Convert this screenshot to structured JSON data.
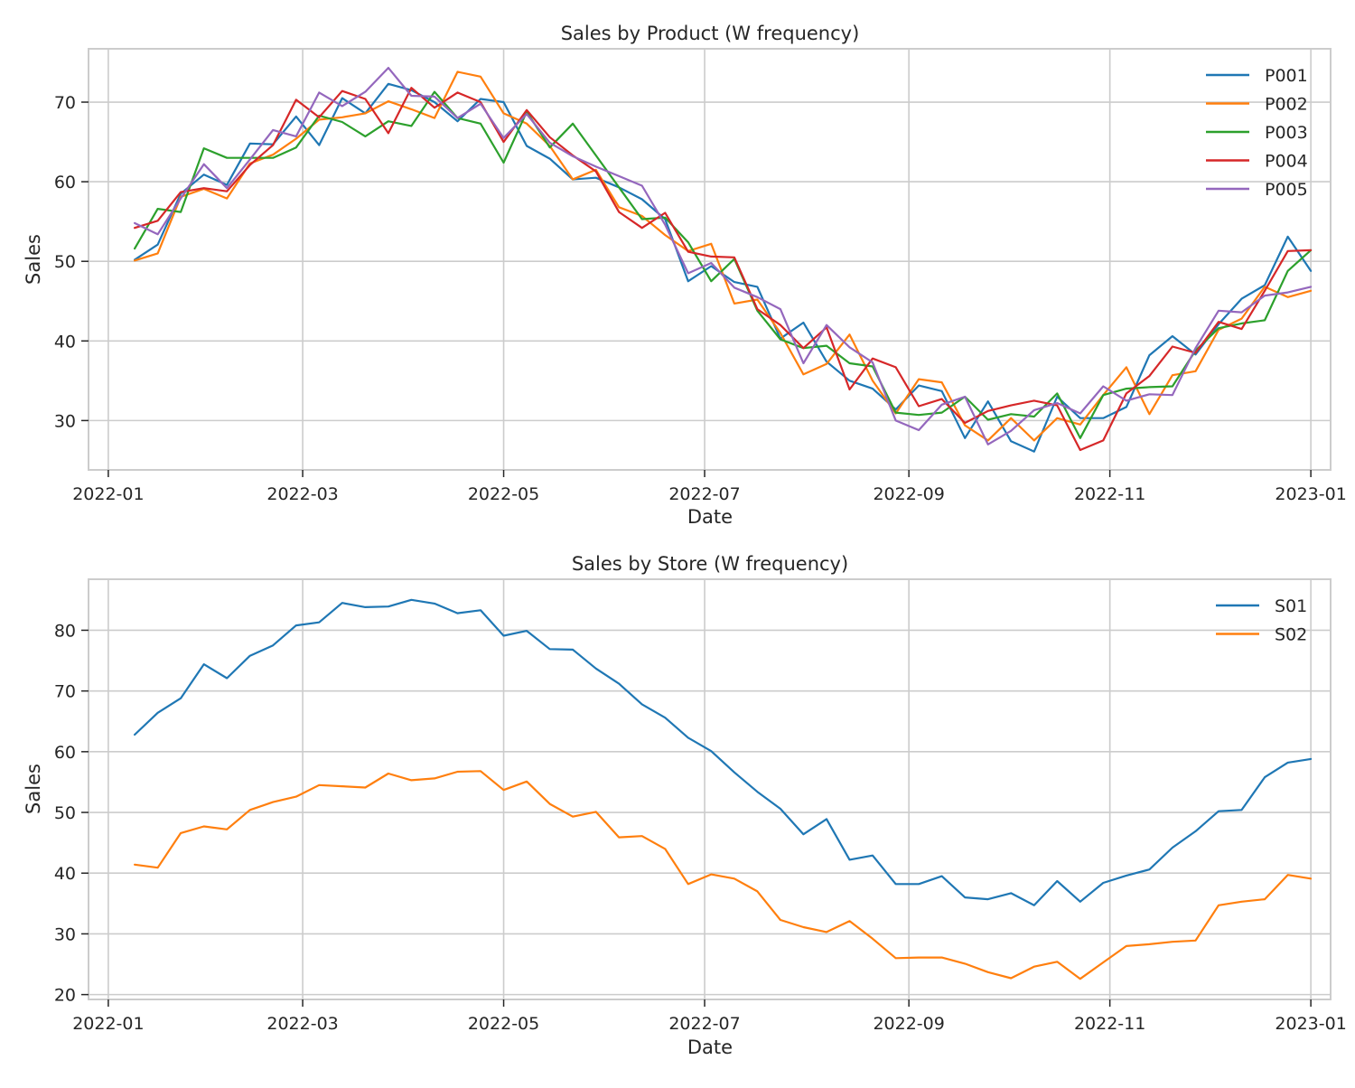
{
  "chart_data": [
    {
      "type": "line",
      "title": "Sales by Product (W frequency)",
      "xlabel": "Date",
      "ylabel": "Sales",
      "x": [
        "2022-01-09",
        "2022-01-16",
        "2022-01-23",
        "2022-01-30",
        "2022-02-06",
        "2022-02-13",
        "2022-02-20",
        "2022-02-27",
        "2022-03-06",
        "2022-03-13",
        "2022-03-20",
        "2022-03-27",
        "2022-04-03",
        "2022-04-10",
        "2022-04-17",
        "2022-04-24",
        "2022-05-01",
        "2022-05-08",
        "2022-05-15",
        "2022-05-22",
        "2022-05-29",
        "2022-06-05",
        "2022-06-12",
        "2022-06-19",
        "2022-06-26",
        "2022-07-03",
        "2022-07-10",
        "2022-07-17",
        "2022-07-24",
        "2022-07-31",
        "2022-08-07",
        "2022-08-14",
        "2022-08-21",
        "2022-08-28",
        "2022-09-04",
        "2022-09-11",
        "2022-09-18",
        "2022-09-25",
        "2022-10-02",
        "2022-10-09",
        "2022-10-16",
        "2022-10-23",
        "2022-10-30",
        "2022-11-06",
        "2022-11-13",
        "2022-11-20",
        "2022-11-27",
        "2022-12-04",
        "2022-12-11",
        "2022-12-18",
        "2022-12-25",
        "2023-01-01"
      ],
      "xticks": [
        "2022-01",
        "2022-03",
        "2022-05",
        "2022-07",
        "2022-09",
        "2022-11",
        "2023-01"
      ],
      "yticks": [
        30,
        40,
        50,
        60,
        70
      ],
      "xlim": [
        "2021-12-26",
        "2023-01-07"
      ],
      "ylim": [
        23.8,
        76.7
      ],
      "grid": true,
      "legend_position": "top-right",
      "series": [
        {
          "name": "P001",
          "color": "#1f77b4",
          "values": [
            50.2,
            52.1,
            58.5,
            60.9,
            59.6,
            64.8,
            64.7,
            68.2,
            64.6,
            70.5,
            68.6,
            72.3,
            71.5,
            70.0,
            67.6,
            70.4,
            70.0,
            64.5,
            62.9,
            60.3,
            60.5,
            59.3,
            57.8,
            55.3,
            47.5,
            49.4,
            47.4,
            46.8,
            40.3,
            42.3,
            37.4,
            35.0,
            34.0,
            31.4,
            34.4,
            33.7,
            27.8,
            32.4,
            27.4,
            26.1,
            33.0,
            30.3,
            30.3,
            31.7,
            38.2,
            40.6,
            38.3,
            42.1,
            45.3,
            47.0,
            53.1,
            48.8
          ]
        },
        {
          "name": "P002",
          "color": "#ff7f0e",
          "values": [
            50.1,
            51.0,
            58.1,
            59.1,
            57.9,
            62.3,
            63.4,
            65.4,
            67.8,
            68.1,
            68.6,
            70.1,
            69.1,
            68.0,
            73.8,
            73.2,
            68.6,
            67.3,
            64.5,
            60.3,
            61.5,
            56.8,
            55.7,
            53.3,
            51.3,
            52.2,
            44.7,
            45.2,
            41.0,
            35.8,
            37.1,
            40.8,
            35.0,
            30.9,
            35.2,
            34.8,
            29.4,
            27.5,
            30.3,
            27.5,
            30.3,
            29.5,
            33.2,
            36.7,
            30.8,
            35.7,
            36.2,
            41.4,
            42.8,
            46.8,
            45.5,
            46.3
          ]
        },
        {
          "name": "P003",
          "color": "#2ca02c",
          "values": [
            51.6,
            56.6,
            56.2,
            64.2,
            63.0,
            63.0,
            63.0,
            64.3,
            68.3,
            67.5,
            65.7,
            67.6,
            67.0,
            71.3,
            68.0,
            67.3,
            62.4,
            68.8,
            64.3,
            67.3,
            63.3,
            59.3,
            55.3,
            55.5,
            52.4,
            47.5,
            50.3,
            43.8,
            40.2,
            39.1,
            39.4,
            37.2,
            36.8,
            31.0,
            30.7,
            31.0,
            33.0,
            30.1,
            30.8,
            30.5,
            33.4,
            27.8,
            33.2,
            34.0,
            34.2,
            34.3,
            38.8,
            41.6,
            42.2,
            42.6,
            48.8,
            51.4
          ]
        },
        {
          "name": "P004",
          "color": "#d62728",
          "values": [
            54.2,
            55.1,
            58.7,
            59.2,
            58.8,
            62.1,
            64.6,
            70.3,
            68.1,
            71.4,
            70.4,
            66.1,
            71.8,
            69.3,
            71.2,
            70.0,
            65.0,
            69.0,
            65.6,
            63.3,
            61.3,
            56.2,
            54.2,
            56.1,
            51.2,
            50.6,
            50.5,
            44.0,
            42.0,
            39.1,
            41.7,
            33.9,
            37.8,
            36.7,
            31.8,
            32.7,
            29.7,
            31.2,
            31.9,
            32.5,
            31.9,
            26.3,
            27.5,
            33.4,
            35.6,
            39.3,
            38.5,
            42.4,
            41.5,
            46.3,
            51.3,
            51.4
          ]
        },
        {
          "name": "P005",
          "color": "#9467bd",
          "values": [
            54.8,
            53.4,
            57.9,
            62.2,
            59.2,
            62.8,
            66.5,
            65.7,
            71.2,
            69.5,
            71.3,
            74.3,
            70.8,
            70.7,
            68.0,
            69.8,
            65.5,
            68.5,
            64.9,
            63.2,
            61.9,
            60.7,
            59.5,
            54.6,
            48.5,
            49.8,
            46.7,
            45.5,
            44.0,
            37.2,
            42.0,
            39.2,
            37.3,
            30.0,
            28.8,
            32.0,
            33.0,
            27.0,
            28.7,
            31.3,
            32.2,
            30.9,
            34.3,
            32.5,
            33.3,
            33.2,
            39.1,
            43.8,
            43.6,
            45.7,
            46.1,
            46.8
          ]
        }
      ]
    },
    {
      "type": "line",
      "title": "Sales by Store (W frequency)",
      "xlabel": "Date",
      "ylabel": "Sales",
      "x": [
        "2022-01-09",
        "2022-01-16",
        "2022-01-23",
        "2022-01-30",
        "2022-02-06",
        "2022-02-13",
        "2022-02-20",
        "2022-02-27",
        "2022-03-06",
        "2022-03-13",
        "2022-03-20",
        "2022-03-27",
        "2022-04-03",
        "2022-04-10",
        "2022-04-17",
        "2022-04-24",
        "2022-05-01",
        "2022-05-08",
        "2022-05-15",
        "2022-05-22",
        "2022-05-29",
        "2022-06-05",
        "2022-06-12",
        "2022-06-19",
        "2022-06-26",
        "2022-07-03",
        "2022-07-10",
        "2022-07-17",
        "2022-07-24",
        "2022-07-31",
        "2022-08-07",
        "2022-08-14",
        "2022-08-21",
        "2022-08-28",
        "2022-09-04",
        "2022-09-11",
        "2022-09-18",
        "2022-09-25",
        "2022-10-02",
        "2022-10-09",
        "2022-10-16",
        "2022-10-23",
        "2022-10-30",
        "2022-11-06",
        "2022-11-13",
        "2022-11-20",
        "2022-11-27",
        "2022-12-04",
        "2022-12-11",
        "2022-12-18",
        "2022-12-25",
        "2023-01-01"
      ],
      "xticks": [
        "2022-01",
        "2022-03",
        "2022-05",
        "2022-07",
        "2022-09",
        "2022-11",
        "2023-01"
      ],
      "yticks": [
        20,
        30,
        40,
        50,
        60,
        70,
        80
      ],
      "xlim": [
        "2021-12-26",
        "2023-01-07"
      ],
      "ylim": [
        19.2,
        88.4
      ],
      "grid": true,
      "legend_position": "top-right",
      "series": [
        {
          "name": "S01",
          "color": "#1f77b4",
          "values": [
            62.8,
            66.4,
            68.8,
            74.4,
            72.1,
            75.8,
            77.5,
            80.8,
            81.3,
            84.5,
            83.8,
            83.9,
            85.0,
            84.4,
            82.8,
            83.3,
            79.1,
            79.9,
            76.9,
            76.8,
            73.7,
            71.2,
            67.8,
            65.6,
            62.3,
            60.1,
            56.6,
            53.4,
            50.6,
            46.4,
            48.9,
            42.2,
            42.9,
            38.2,
            38.2,
            39.5,
            36.0,
            35.7,
            36.7,
            34.7,
            38.7,
            35.3,
            38.4,
            39.6,
            40.6,
            44.2,
            46.9,
            50.2,
            50.4,
            55.8,
            58.2,
            58.8
          ]
        },
        {
          "name": "S02",
          "color": "#ff7f0e",
          "values": [
            41.4,
            40.9,
            46.6,
            47.7,
            47.2,
            50.4,
            51.7,
            52.6,
            54.5,
            54.3,
            54.1,
            56.4,
            55.3,
            55.6,
            56.7,
            56.8,
            53.7,
            55.1,
            51.4,
            49.3,
            50.1,
            45.9,
            46.1,
            44.0,
            38.2,
            39.8,
            39.1,
            37.0,
            32.3,
            31.1,
            30.3,
            32.1,
            29.2,
            26.0,
            26.1,
            26.1,
            25.1,
            23.7,
            22.7,
            24.6,
            25.4,
            22.6,
            25.3,
            28.0,
            28.3,
            28.7,
            28.9,
            34.7,
            35.3,
            35.7,
            39.7,
            39.1
          ]
        }
      ]
    }
  ]
}
